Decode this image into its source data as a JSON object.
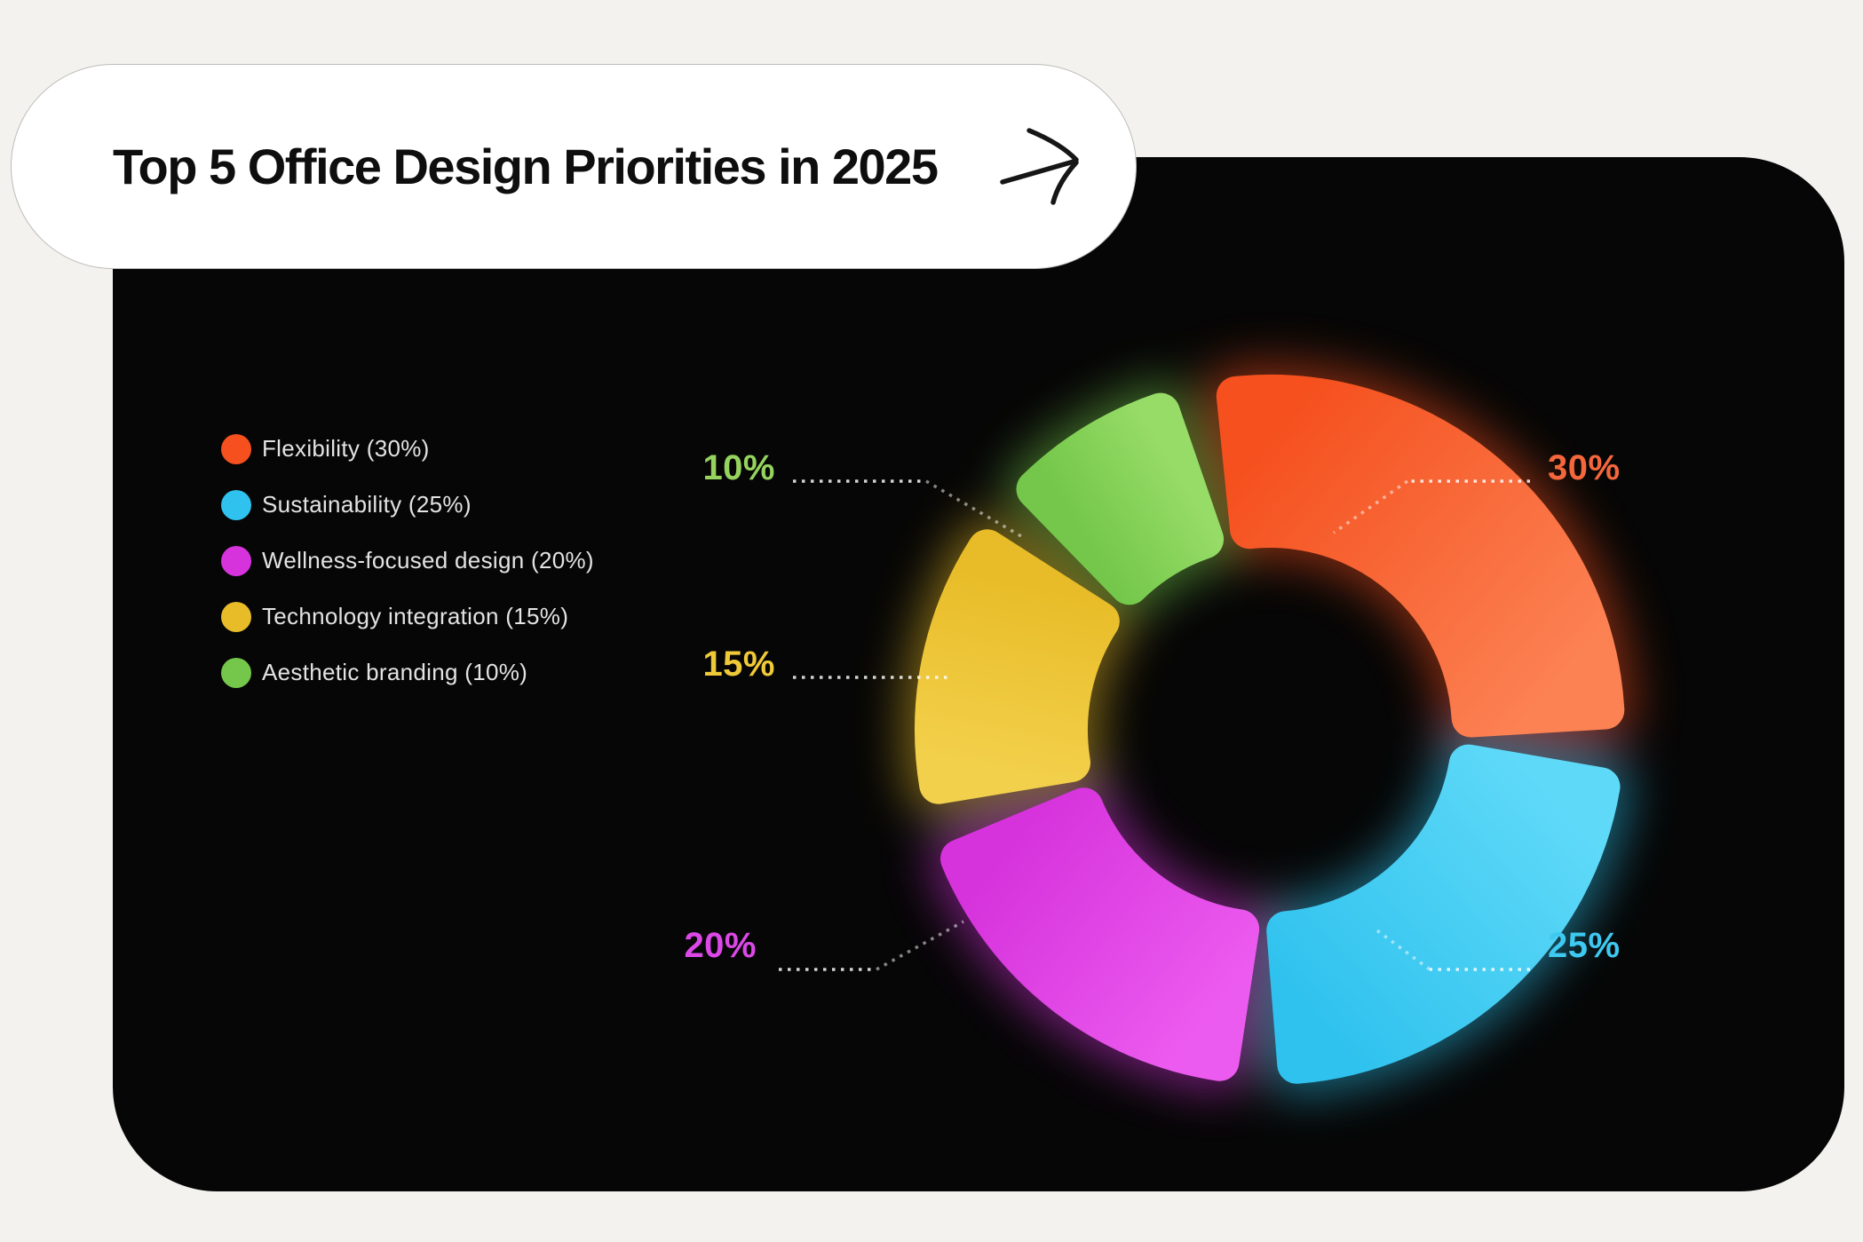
{
  "header": {
    "title": "Top 5 Office Design Priorities in 2025",
    "arrow_icon": "hand-drawn-arrow-right"
  },
  "palette": {
    "page_bg": "#F3F2EF",
    "card_bg": "#060606",
    "pill_bg": "#FFFFFF",
    "pill_border": "#BCBBB8",
    "title_color": "#0E0E0E",
    "legend_text": "#E3E3E3",
    "leader_line": "#FFFFFF"
  },
  "chart_data": {
    "type": "pie",
    "variant": "segmented-donut",
    "title": "Top 5 Office Design Priorities in 2025",
    "legend_position": "left",
    "start_angle_deg": -10,
    "segment_gap_deg": 4.8,
    "series": [
      {
        "label": "Flexibility",
        "value": 30,
        "pct_label": "30%",
        "legend_label": "Flexibility (30%)",
        "color": "#F5501E",
        "color_light": "#FC8254",
        "label_color": "#F4673C"
      },
      {
        "label": "Sustainability",
        "value": 25,
        "pct_label": "25%",
        "legend_label": "Sustainability (25%)",
        "color": "#2FC2EE",
        "color_light": "#5FD9F8",
        "label_color": "#3EC9F1"
      },
      {
        "label": "Wellness-focused design",
        "value": 20,
        "pct_label": "20%",
        "legend_label": "Wellness-focused design (20%)",
        "color": "#D633DC",
        "color_light": "#EC5BEF",
        "label_color": "#DC48E8"
      },
      {
        "label": "Technology integration",
        "value": 15,
        "pct_label": "15%",
        "legend_label": "Technology integration (15%)",
        "color": "#E8BC28",
        "color_light": "#F3D04B",
        "label_color": "#EFC937"
      },
      {
        "label": "Aesthetic branding",
        "value": 10,
        "pct_label": "10%",
        "legend_label": "Aesthetic branding (10%)",
        "color": "#74C74A",
        "color_light": "#97DC67",
        "label_color": "#95D35E"
      }
    ]
  }
}
